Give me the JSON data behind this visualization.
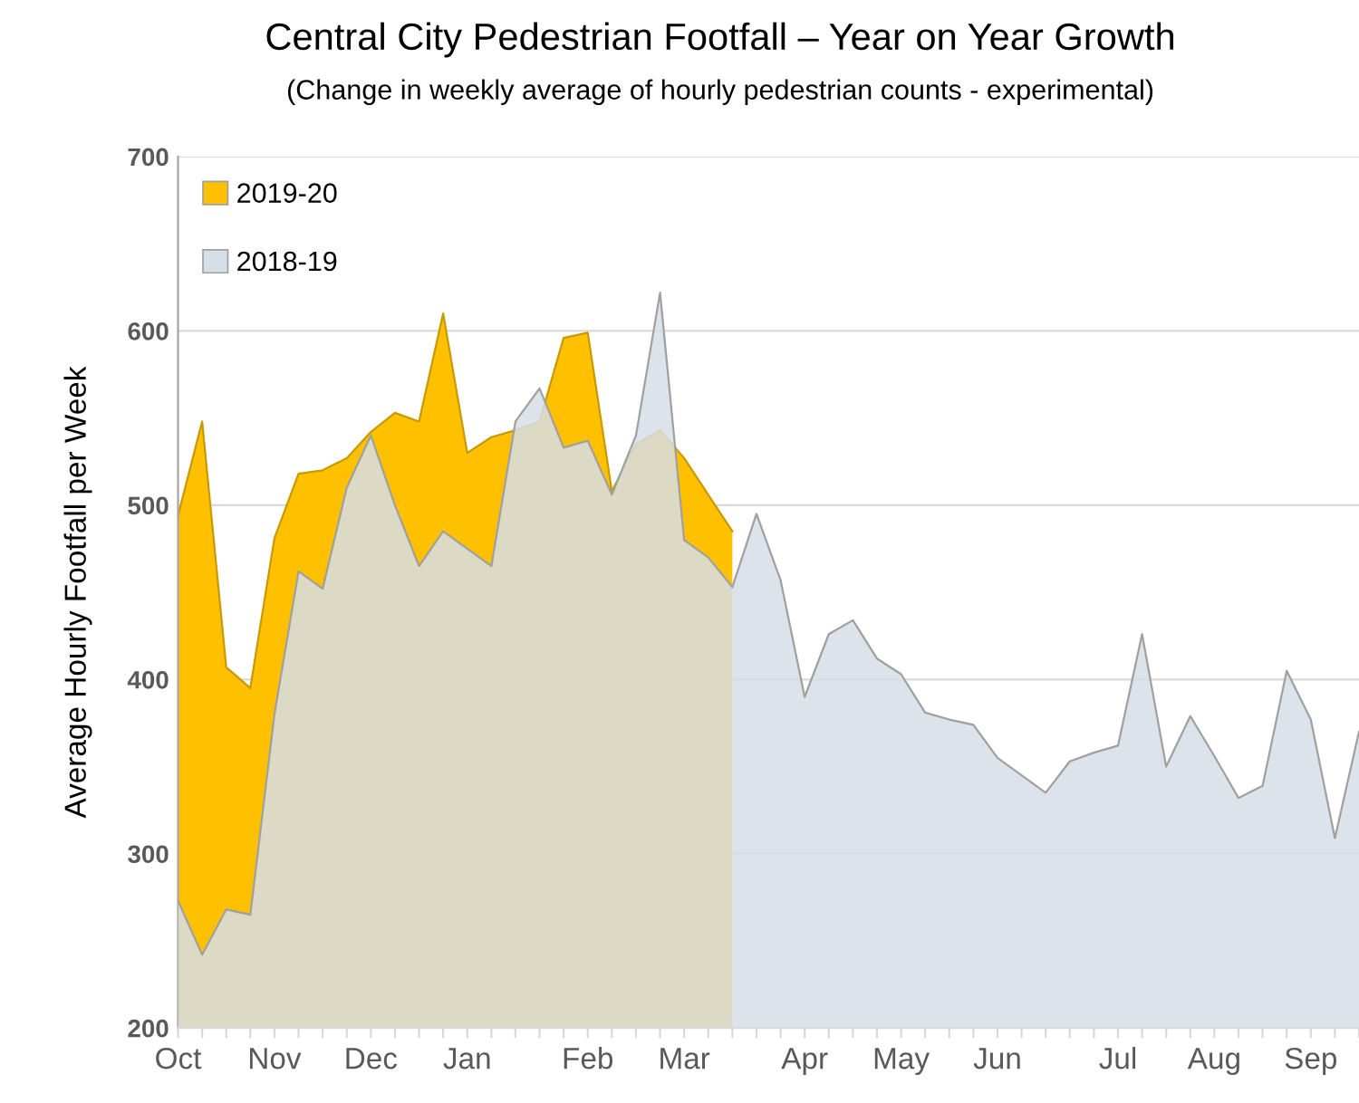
{
  "chart_data": {
    "type": "area",
    "title": "Central City Pedestrian Footfall – Year on Year Growth",
    "subtitle": "(Change in weekly average of hourly pedestrian counts - experimental)",
    "ylabel": "Average Hourly Footfall per Week",
    "categories": [
      "Oct",
      null,
      null,
      null,
      "Nov",
      null,
      null,
      null,
      "Dec",
      null,
      null,
      null,
      "Jan",
      null,
      null,
      null,
      null,
      "Feb",
      null,
      null,
      null,
      "Mar",
      null,
      null,
      null,
      null,
      "Apr",
      null,
      null,
      null,
      "May",
      null,
      null,
      null,
      "Jun",
      null,
      null,
      null,
      null,
      "Jul",
      null,
      null,
      null,
      "Aug",
      null,
      null,
      null,
      "Sep",
      null,
      null
    ],
    "series": [
      {
        "name": "2019-20",
        "color": "#ffc000",
        "values": [
          494,
          548,
          407,
          395,
          481,
          518,
          520,
          527,
          542,
          553,
          548,
          610,
          530,
          539,
          543,
          548,
          596,
          599,
          508,
          535,
          543,
          527,
          506,
          485,
          null,
          null,
          null,
          null,
          null,
          null,
          null,
          null,
          null,
          null,
          null,
          null,
          null,
          null,
          null,
          null,
          null,
          null,
          null,
          null,
          null,
          null,
          null,
          null,
          null,
          null
        ]
      },
      {
        "name": "2018-19",
        "color": "#d6dee8",
        "values": [
          273,
          242,
          268,
          265,
          380,
          462,
          452,
          510,
          540,
          500,
          465,
          485,
          475,
          465,
          548,
          567,
          533,
          537,
          506,
          540,
          622,
          480,
          470,
          453,
          495,
          457,
          390,
          426,
          434,
          412,
          403,
          381,
          377,
          374,
          355,
          345,
          335,
          353,
          358,
          362,
          426,
          350,
          379,
          356,
          332,
          339,
          405,
          377,
          309,
          370
        ]
      }
    ],
    "ylim": [
      200,
      700
    ],
    "yticks": [
      200,
      300,
      400,
      500,
      600,
      700
    ],
    "grid": "y",
    "legend": "top left"
  }
}
